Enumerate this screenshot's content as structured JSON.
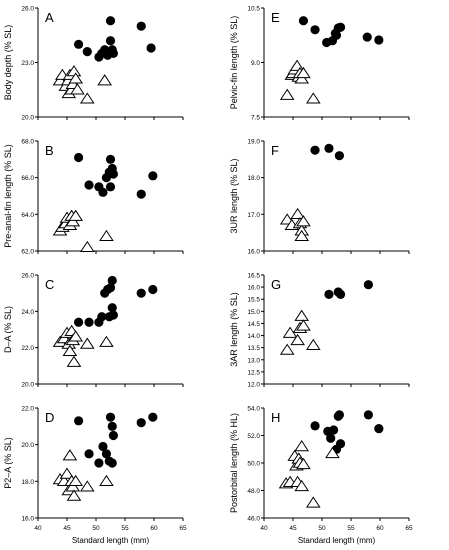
{
  "chart_data": [
    {
      "type": "scatter",
      "panel_letter": "A",
      "ylabel": "Body depth (% SL)",
      "xlim": [
        40,
        65
      ],
      "ylim": [
        20.0,
        26.0
      ],
      "yticks": [
        "20.0",
        "23.0",
        "26.0"
      ],
      "xticks": [],
      "series": [
        {
          "marker": "filled-circle",
          "points": [
            [
              47.0,
              24.0
            ],
            [
              48.5,
              23.6
            ],
            [
              50.5,
              23.3
            ],
            [
              51.0,
              23.5
            ],
            [
              51.5,
              23.7
            ],
            [
              52.0,
              23.4
            ],
            [
              52.5,
              24.2
            ],
            [
              52.8,
              23.7
            ],
            [
              53.0,
              23.5
            ],
            [
              52.5,
              25.3
            ],
            [
              57.8,
              25.0
            ],
            [
              59.5,
              23.8
            ]
          ]
        },
        {
          "marker": "open-triangle",
          "points": [
            [
              43.8,
              22.0
            ],
            [
              44.2,
              22.3
            ],
            [
              44.8,
              21.7
            ],
            [
              45.2,
              22.0
            ],
            [
              45.3,
              21.3
            ],
            [
              45.5,
              22.3
            ],
            [
              45.8,
              21.5
            ],
            [
              46.0,
              21.8
            ],
            [
              46.2,
              22.5
            ],
            [
              46.5,
              22.1
            ],
            [
              46.8,
              21.5
            ],
            [
              48.5,
              21.0
            ],
            [
              51.5,
              22.0
            ]
          ]
        }
      ]
    },
    {
      "type": "scatter",
      "panel_letter": "E",
      "ylabel": "Pelvic-fin length (% SL)",
      "xlim": [
        40,
        65
      ],
      "ylim": [
        7.5,
        10.5
      ],
      "yticks": [
        "7.5",
        "9.0",
        "10.5"
      ],
      "xticks": [],
      "series": [
        {
          "marker": "filled-circle",
          "points": [
            [
              46.8,
              10.15
            ],
            [
              48.8,
              9.9
            ],
            [
              50.8,
              9.55
            ],
            [
              51.8,
              9.6
            ],
            [
              52.3,
              9.8
            ],
            [
              52.8,
              9.95
            ],
            [
              53.2,
              9.97
            ],
            [
              52.5,
              9.75
            ],
            [
              57.8,
              9.7
            ],
            [
              59.8,
              9.62
            ]
          ]
        },
        {
          "marker": "open-triangle",
          "points": [
            [
              44.0,
              8.1
            ],
            [
              44.8,
              8.65
            ],
            [
              45.0,
              8.7
            ],
            [
              45.3,
              8.8
            ],
            [
              45.7,
              8.9
            ],
            [
              46.0,
              8.6
            ],
            [
              46.2,
              8.7
            ],
            [
              46.5,
              8.55
            ],
            [
              46.8,
              8.7
            ],
            [
              48.5,
              8.0
            ]
          ]
        }
      ]
    },
    {
      "type": "scatter",
      "panel_letter": "B",
      "ylabel": "Pre-anal-fin length (% SL)",
      "xlim": [
        40,
        65
      ],
      "ylim": [
        62.0,
        68.0
      ],
      "yticks": [
        "62.0",
        "64.0",
        "66.0",
        "68.0"
      ],
      "xticks": [],
      "series": [
        {
          "marker": "filled-circle",
          "points": [
            [
              47.0,
              67.1
            ],
            [
              48.8,
              65.6
            ],
            [
              50.5,
              65.5
            ],
            [
              51.2,
              65.2
            ],
            [
              51.8,
              66.0
            ],
            [
              52.3,
              66.3
            ],
            [
              52.5,
              67.0
            ],
            [
              52.8,
              66.5
            ],
            [
              53.0,
              66.2
            ],
            [
              52.5,
              65.5
            ],
            [
              57.8,
              65.1
            ],
            [
              59.8,
              66.1
            ]
          ]
        },
        {
          "marker": "open-triangle",
          "points": [
            [
              43.8,
              63.1
            ],
            [
              44.2,
              63.3
            ],
            [
              44.8,
              63.5
            ],
            [
              45.0,
              63.8
            ],
            [
              45.5,
              63.4
            ],
            [
              45.8,
              63.9
            ],
            [
              46.0,
              63.6
            ],
            [
              46.5,
              63.9
            ],
            [
              48.5,
              62.2
            ],
            [
              51.8,
              62.8
            ]
          ]
        }
      ]
    },
    {
      "type": "scatter",
      "panel_letter": "F",
      "ylabel": "3UR length (% SL)",
      "xlim": [
        40,
        65
      ],
      "ylim": [
        16.0,
        19.0
      ],
      "yticks": [
        "16.0",
        "17.0",
        "18.0",
        "19.0"
      ],
      "xticks": [],
      "series": [
        {
          "marker": "filled-circle",
          "points": [
            [
              48.8,
              18.75
            ],
            [
              51.2,
              18.8
            ],
            [
              53.0,
              18.6
            ]
          ]
        },
        {
          "marker": "open-triangle",
          "points": [
            [
              44.0,
              16.85
            ],
            [
              44.8,
              16.7
            ],
            [
              45.8,
              17.0
            ],
            [
              46.2,
              16.75
            ],
            [
              46.5,
              16.55
            ],
            [
              46.8,
              16.8
            ],
            [
              46.5,
              16.4
            ]
          ]
        }
      ]
    },
    {
      "type": "scatter",
      "panel_letter": "C",
      "ylabel": "D–A (% SL)",
      "xlim": [
        40,
        65
      ],
      "ylim": [
        20.0,
        26.0
      ],
      "yticks": [
        "20.0",
        "22.0",
        "24.0",
        "26.0"
      ],
      "xticks": [],
      "series": [
        {
          "marker": "filled-circle",
          "points": [
            [
              47.0,
              23.4
            ],
            [
              48.8,
              23.4
            ],
            [
              50.5,
              23.4
            ],
            [
              51.0,
              23.7
            ],
            [
              51.5,
              25.0
            ],
            [
              52.0,
              25.2
            ],
            [
              52.3,
              23.7
            ],
            [
              52.5,
              25.3
            ],
            [
              52.8,
              24.2
            ],
            [
              53.0,
              23.8
            ],
            [
              52.8,
              25.7
            ],
            [
              57.8,
              25.0
            ],
            [
              59.8,
              25.2
            ]
          ]
        },
        {
          "marker": "open-triangle",
          "points": [
            [
              43.8,
              22.3
            ],
            [
              44.5,
              22.5
            ],
            [
              45.0,
              22.8
            ],
            [
              45.3,
              22.2
            ],
            [
              45.5,
              21.8
            ],
            [
              45.8,
              22.9
            ],
            [
              46.0,
              22.4
            ],
            [
              46.2,
              21.2
            ],
            [
              46.5,
              22.6
            ],
            [
              48.5,
              22.2
            ],
            [
              51.8,
              22.3
            ]
          ]
        }
      ]
    },
    {
      "type": "scatter",
      "panel_letter": "G",
      "ylabel": "3AR length (% SL)",
      "xlim": [
        40,
        65
      ],
      "ylim": [
        12.0,
        16.5
      ],
      "yticks": [
        "12.0",
        "12.5",
        "13.0",
        "13.5",
        "14.0",
        "14.5",
        "15.0",
        "15.5",
        "16.0",
        "16.5"
      ],
      "xticks": [],
      "series": [
        {
          "marker": "filled-circle",
          "points": [
            [
              51.2,
              15.7
            ],
            [
              52.8,
              15.8
            ],
            [
              53.2,
              15.7
            ],
            [
              58.0,
              16.1
            ]
          ]
        },
        {
          "marker": "open-triangle",
          "points": [
            [
              44.0,
              13.4
            ],
            [
              44.5,
              14.1
            ],
            [
              45.8,
              13.8
            ],
            [
              46.2,
              14.3
            ],
            [
              46.5,
              14.8
            ],
            [
              46.8,
              14.4
            ],
            [
              48.5,
              13.6
            ]
          ]
        }
      ]
    },
    {
      "type": "scatter",
      "panel_letter": "D",
      "ylabel": "P2–A (% SL)",
      "xlim": [
        40,
        65
      ],
      "ylim": [
        16.0,
        22.0
      ],
      "yticks": [
        "16.0",
        "18.0",
        "20.0",
        "22.0"
      ],
      "xticks": [
        "40",
        "45",
        "50",
        "55",
        "60",
        "65"
      ],
      "xlabel": "Standard length (mm)",
      "series": [
        {
          "marker": "filled-circle",
          "points": [
            [
              47.0,
              21.3
            ],
            [
              48.8,
              19.5
            ],
            [
              50.5,
              19.0
            ],
            [
              51.2,
              19.9
            ],
            [
              51.8,
              19.5
            ],
            [
              52.3,
              19.1
            ],
            [
              52.5,
              21.5
            ],
            [
              52.8,
              21.0
            ],
            [
              53.0,
              20.5
            ],
            [
              52.8,
              19.0
            ],
            [
              57.8,
              21.2
            ],
            [
              59.8,
              21.5
            ]
          ]
        },
        {
          "marker": "open-triangle",
          "points": [
            [
              43.8,
              18.1
            ],
            [
              44.5,
              18.0
            ],
            [
              45.0,
              18.4
            ],
            [
              45.3,
              17.5
            ],
            [
              45.5,
              19.4
            ],
            [
              45.8,
              18.0
            ],
            [
              46.0,
              17.7
            ],
            [
              46.2,
              17.2
            ],
            [
              46.5,
              18.0
            ],
            [
              48.5,
              17.7
            ],
            [
              51.8,
              18.0
            ]
          ]
        }
      ]
    },
    {
      "type": "scatter",
      "panel_letter": "H",
      "ylabel": "Postorbital length (% HL)",
      "xlim": [
        40,
        65
      ],
      "ylim": [
        46.0,
        54.0
      ],
      "yticks": [
        "46.0",
        "48.0",
        "50.0",
        "52.0",
        "54.0"
      ],
      "xticks": [
        "40",
        "45",
        "50",
        "55",
        "60",
        "65"
      ],
      "xlabel": "Standard length (mm)",
      "series": [
        {
          "marker": "filled-circle",
          "points": [
            [
              48.8,
              52.7
            ],
            [
              51.0,
              52.3
            ],
            [
              51.5,
              51.8
            ],
            [
              52.0,
              52.4
            ],
            [
              52.5,
              51.0
            ],
            [
              52.8,
              53.4
            ],
            [
              53.0,
              53.5
            ],
            [
              53.2,
              51.4
            ],
            [
              58.0,
              53.5
            ],
            [
              59.8,
              52.5
            ]
          ]
        },
        {
          "marker": "open-triangle",
          "points": [
            [
              43.8,
              48.5
            ],
            [
              44.5,
              48.6
            ],
            [
              45.3,
              50.5
            ],
            [
              45.6,
              49.8
            ],
            [
              45.8,
              48.6
            ],
            [
              46.0,
              50.3
            ],
            [
              46.2,
              50.0
            ],
            [
              46.5,
              51.2
            ],
            [
              46.5,
              48.3
            ],
            [
              46.8,
              49.9
            ],
            [
              48.5,
              47.1
            ],
            [
              51.8,
              50.7
            ]
          ]
        }
      ]
    }
  ]
}
